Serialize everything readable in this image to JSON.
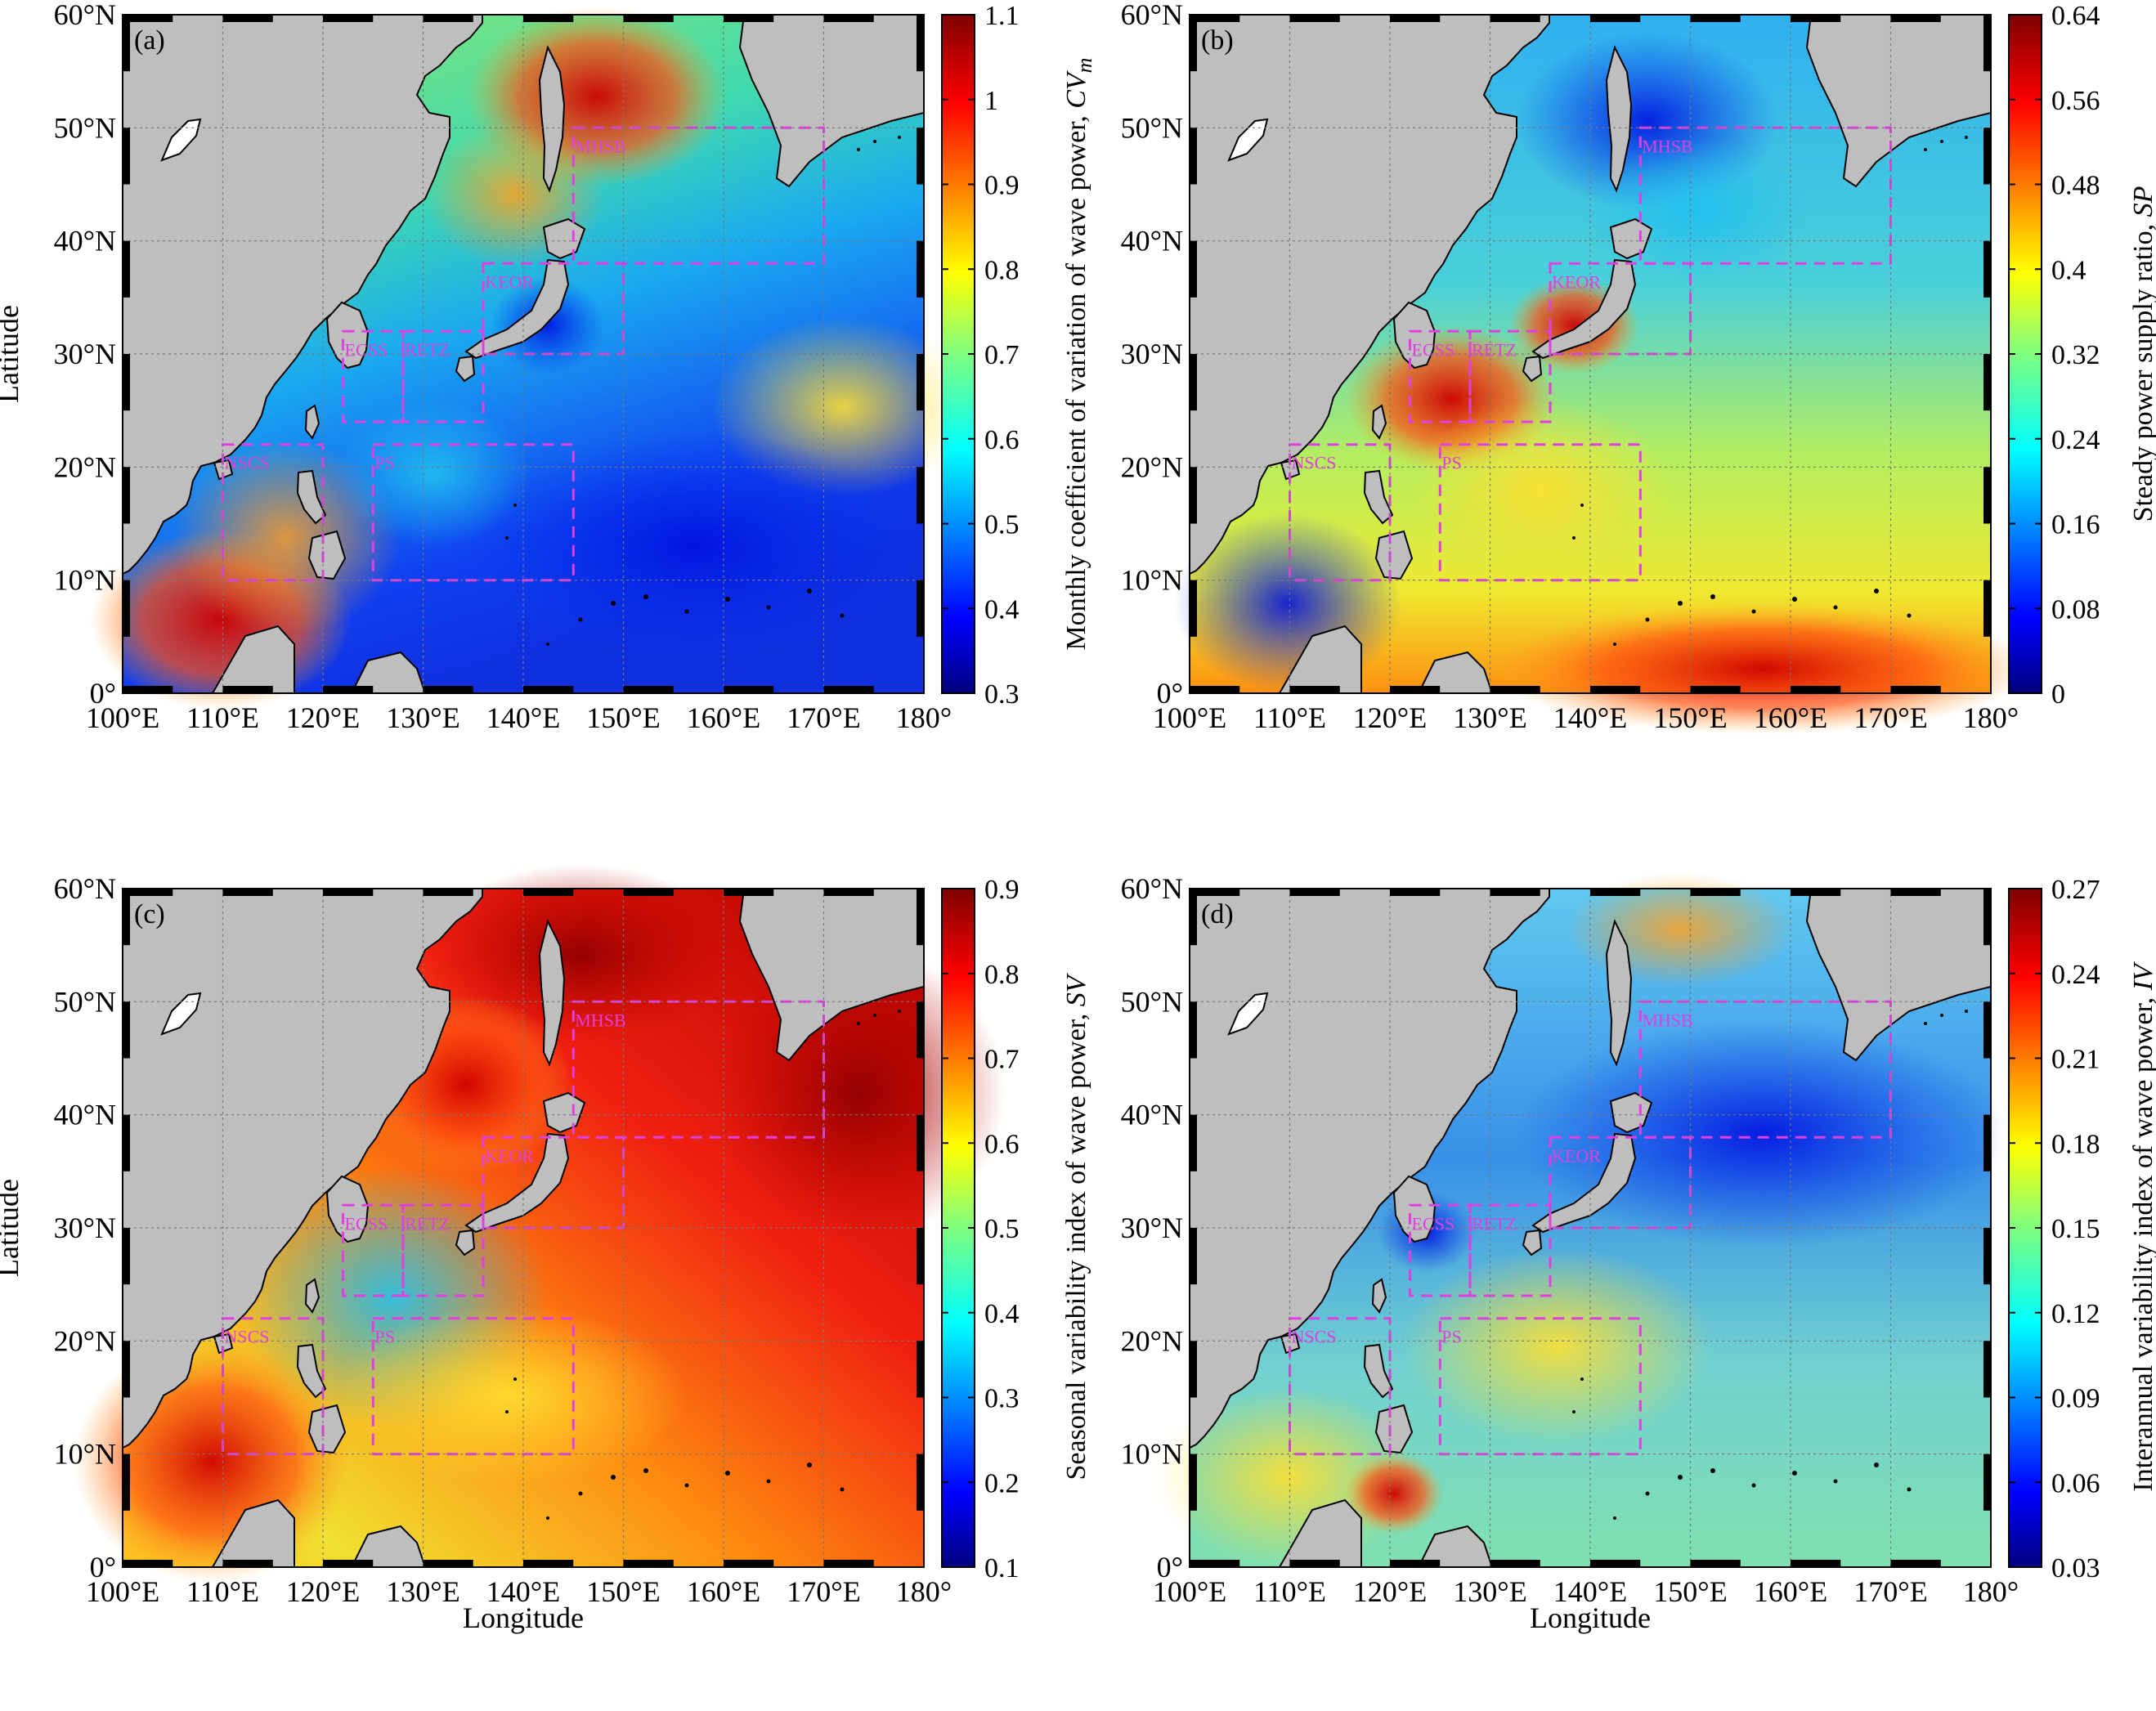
{
  "figure": {
    "x_axis_label": "Longitude",
    "y_axis_label": "Latitude",
    "lon_ticks": [
      "100°E",
      "110°E",
      "120°E",
      "130°E",
      "140°E",
      "150°E",
      "160°E",
      "170°E",
      "180°"
    ],
    "lat_ticks": [
      "0°",
      "10°N",
      "20°N",
      "30°N",
      "40°N",
      "50°N",
      "60°N"
    ],
    "land_color": "#bebebe",
    "box_color": "#e040e0",
    "regions": [
      {
        "name": "MHSB",
        "lon": [
          145,
          170
        ],
        "lat": [
          38,
          50
        ]
      },
      {
        "name": "KEOR",
        "lon": [
          136,
          150
        ],
        "lat": [
          30,
          38
        ]
      },
      {
        "name": "ECSS",
        "lon": [
          122,
          128
        ],
        "lat": [
          24,
          32
        ]
      },
      {
        "name": "RETZ",
        "lon": [
          128,
          136
        ],
        "lat": [
          24,
          32
        ]
      },
      {
        "name": "NSCS",
        "lon": [
          110,
          120
        ],
        "lat": [
          10,
          22
        ]
      },
      {
        "name": "PS",
        "lon": [
          125,
          145
        ],
        "lat": [
          10,
          22
        ]
      }
    ]
  },
  "panels": [
    {
      "letter": "(a)",
      "colorbar_label": "Monthly coefficient of variation of wave power,",
      "colorbar_symbol": "CV",
      "colorbar_subscript": "m",
      "colorbar_ticks": [
        "0.3",
        "0.4",
        "0.5",
        "0.6",
        "0.7",
        "0.8",
        "0.9",
        "1",
        "1.1"
      ],
      "colorbar_range": [
        0.3,
        1.1
      ]
    },
    {
      "letter": "(b)",
      "colorbar_label": "Steady power supply ratio,",
      "colorbar_symbol": "SP",
      "colorbar_subscript": "",
      "colorbar_ticks": [
        "0",
        "0.08",
        "0.16",
        "0.24",
        "0.32",
        "0.4",
        "0.48",
        "0.56",
        "0.64"
      ],
      "colorbar_range": [
        0,
        0.64
      ]
    },
    {
      "letter": "(c)",
      "colorbar_label": "Seasonal variability index of wave power,",
      "colorbar_symbol": "SV",
      "colorbar_subscript": "",
      "colorbar_ticks": [
        "0.1",
        "0.2",
        "0.3",
        "0.4",
        "0.5",
        "0.6",
        "0.7",
        "0.8",
        "0.9"
      ],
      "colorbar_range": [
        0.1,
        0.9
      ]
    },
    {
      "letter": "(d)",
      "colorbar_label": "Interannual variability index of wave power,",
      "colorbar_symbol": "IV",
      "colorbar_subscript": "",
      "colorbar_ticks": [
        "0.03",
        "0.06",
        "0.09",
        "0.12",
        "0.15",
        "0.18",
        "0.21",
        "0.24",
        "0.27"
      ],
      "colorbar_range": [
        0.03,
        0.27
      ]
    }
  ]
}
